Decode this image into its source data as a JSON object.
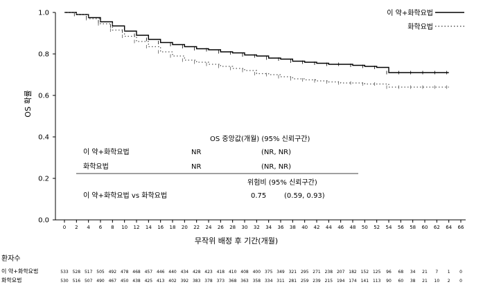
{
  "chart_data": {
    "type": "line",
    "title": "",
    "xlabel": "무작위 배정 후 기간(개월)",
    "ylabel": "OS 확률",
    "xlim": [
      0,
      66
    ],
    "ylim": [
      0.0,
      1.0
    ],
    "x_ticks": [
      "0",
      "2",
      "4",
      "6",
      "8",
      "10",
      "12",
      "14",
      "16",
      "18",
      "20",
      "22",
      "24",
      "26",
      "28",
      "30",
      "32",
      "34",
      "36",
      "38",
      "40",
      "42",
      "44",
      "46",
      "48",
      "50",
      "52",
      "54",
      "56",
      "58",
      "60",
      "62",
      "64",
      "66"
    ],
    "y_ticks": [
      "0.0",
      "0.2",
      "0.4",
      "0.6",
      "0.8",
      "1.0"
    ],
    "legend_position": "top-right",
    "series": [
      {
        "name": "이 약+화학요법",
        "color": "#000000",
        "style": "solid",
        "x": [
          0,
          2,
          4,
          6,
          8,
          10,
          12,
          14,
          16,
          18,
          20,
          22,
          24,
          26,
          28,
          30,
          32,
          34,
          36,
          38,
          40,
          42,
          44,
          46,
          48,
          50,
          52,
          54,
          56,
          58,
          60,
          62,
          64
        ],
        "y": [
          1.0,
          0.99,
          0.975,
          0.955,
          0.935,
          0.91,
          0.89,
          0.87,
          0.855,
          0.845,
          0.835,
          0.825,
          0.82,
          0.81,
          0.805,
          0.795,
          0.79,
          0.78,
          0.775,
          0.765,
          0.76,
          0.755,
          0.75,
          0.75,
          0.745,
          0.74,
          0.735,
          0.71,
          0.71,
          0.71,
          0.71,
          0.71,
          0.71
        ]
      },
      {
        "name": "화학요법",
        "color": "#555555",
        "style": "dotted",
        "x": [
          0,
          2,
          4,
          6,
          8,
          10,
          12,
          14,
          16,
          18,
          20,
          22,
          24,
          26,
          28,
          30,
          32,
          34,
          36,
          38,
          40,
          42,
          44,
          46,
          48,
          50,
          52,
          54,
          56,
          58,
          60,
          62,
          64
        ],
        "y": [
          1.0,
          0.99,
          0.97,
          0.945,
          0.915,
          0.885,
          0.86,
          0.835,
          0.81,
          0.79,
          0.77,
          0.76,
          0.75,
          0.74,
          0.73,
          0.72,
          0.705,
          0.7,
          0.69,
          0.68,
          0.675,
          0.67,
          0.665,
          0.66,
          0.66,
          0.655,
          0.655,
          0.64,
          0.64,
          0.64,
          0.64,
          0.64,
          0.64
        ]
      }
    ],
    "annotation_table": {
      "header": "OS 중앙값(개월) (95% 신뢰구간)",
      "rows": [
        {
          "label": "이 약+화학요법",
          "median": "NR",
          "ci": "(NR, NR)"
        },
        {
          "label": "화학요법",
          "median": "NR",
          "ci": "(NR, NR)"
        }
      ],
      "hr_header": "위험비  (95% 신뢰구간)",
      "hr_row": {
        "label": "이 약+화학요법 vs 화학요법",
        "hr": "0.75",
        "ci": "(0.59, 0.93)"
      }
    },
    "risk_table": {
      "title": "환자수",
      "rows": [
        {
          "label": "이 약+화학요법",
          "values": [
            "533",
            "528",
            "517",
            "505",
            "492",
            "478",
            "468",
            "457",
            "446",
            "440",
            "434",
            "428",
            "423",
            "418",
            "410",
            "408",
            "400",
            "375",
            "349",
            "321",
            "295",
            "271",
            "238",
            "207",
            "182",
            "152",
            "125",
            "96",
            "68",
            "34",
            "21",
            "7",
            "1",
            "0"
          ]
        },
        {
          "label": "화학요법",
          "values": [
            "530",
            "516",
            "507",
            "490",
            "467",
            "450",
            "438",
            "425",
            "413",
            "402",
            "392",
            "383",
            "378",
            "373",
            "368",
            "363",
            "358",
            "334",
            "311",
            "281",
            "259",
            "239",
            "215",
            "194",
            "174",
            "141",
            "113",
            "90",
            "60",
            "38",
            "21",
            "10",
            "2",
            "0"
          ]
        }
      ]
    }
  }
}
